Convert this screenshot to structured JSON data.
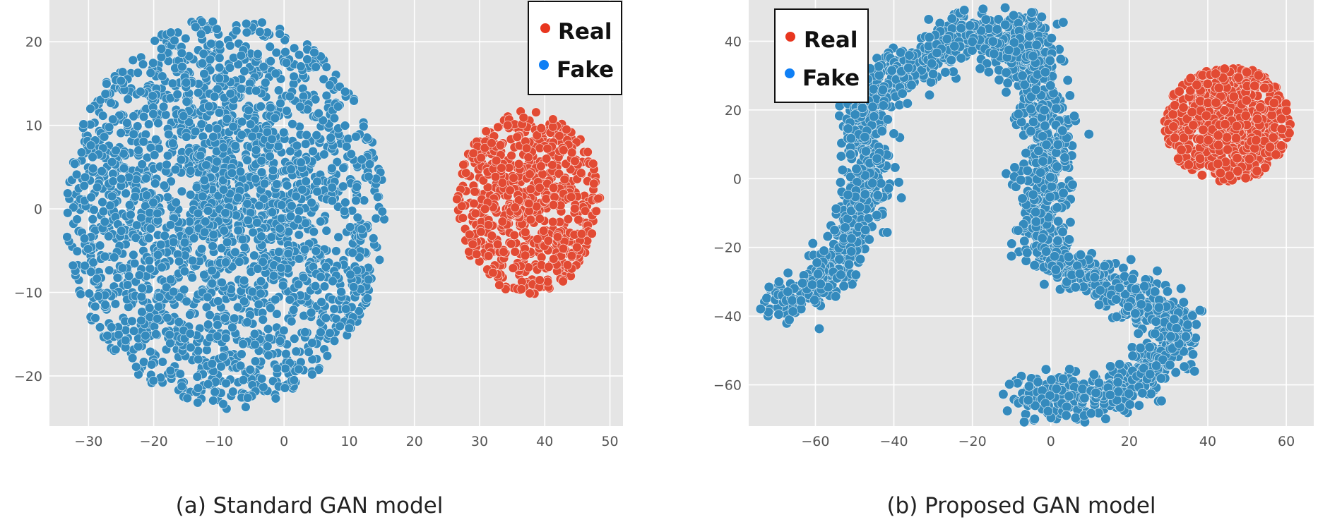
{
  "colors": {
    "panel_bg": "#e5e5e5",
    "grid": "#ffffff",
    "real": "#e24a33",
    "fake": "#348abd",
    "legend_real_marker": "#e8361f",
    "legend_fake_marker": "#0f7ff5",
    "tick_text": "#555555"
  },
  "chart_data": [
    {
      "type": "scatter",
      "title": "",
      "caption": "(a) Standard GAN model",
      "xlim": [
        -36,
        52
      ],
      "ylim": [
        -26,
        25
      ],
      "xticks": [
        -30,
        -20,
        -10,
        0,
        10,
        20,
        30,
        40,
        50
      ],
      "yticks": [
        -20,
        -10,
        0,
        10,
        20
      ],
      "xtick_labels": [
        "−30",
        "−20",
        "−10",
        "0",
        "10",
        "20",
        "30",
        "40",
        "50"
      ],
      "ytick_labels": [
        "−20",
        "−10",
        "0",
        "10",
        "20"
      ],
      "grid": true,
      "legend": {
        "position": "top-right",
        "entries": [
          "Real",
          "Fake"
        ]
      },
      "series": [
        {
          "name": "Fake",
          "color": "#348abd",
          "n_points": 2300,
          "shape": "ellipse",
          "center": [
            -9,
            -0.5
          ],
          "radii": [
            24.5,
            23.5
          ]
        },
        {
          "name": "Real",
          "color": "#e24a33",
          "n_points": 650,
          "shape": "ellipse",
          "center": [
            37.5,
            0.8
          ],
          "radii": [
            11,
            11
          ]
        }
      ]
    },
    {
      "type": "scatter",
      "title": "",
      "caption": "(b) Proposed GAN model",
      "xlim": [
        -77,
        67
      ],
      "ylim": [
        -72,
        52
      ],
      "xticks": [
        -60,
        -40,
        -20,
        0,
        20,
        40,
        60
      ],
      "yticks": [
        -60,
        -40,
        -20,
        0,
        20,
        40
      ],
      "xtick_labels": [
        "−60",
        "−40",
        "−20",
        "0",
        "20",
        "40",
        "60"
      ],
      "ytick_labels": [
        "−60",
        "−40",
        "−20",
        "0",
        "20",
        "40"
      ],
      "grid": true,
      "legend": {
        "position": "top-left",
        "entries": [
          "Real",
          "Fake"
        ]
      },
      "series": [
        {
          "name": "Fake",
          "color": "#348abd",
          "n_points": 2400,
          "shape": "path",
          "path": [
            [
              -70,
              -36
            ],
            [
              -62,
              -32
            ],
            [
              -55,
              -25
            ],
            [
              -50,
              -15
            ],
            [
              -47,
              -5
            ],
            [
              -46,
              5
            ],
            [
              -48,
              15
            ],
            [
              -45,
              25
            ],
            [
              -40,
              30
            ],
            [
              -33,
              33
            ],
            [
              -25,
              40
            ],
            [
              -20,
              45
            ],
            [
              -15,
              38
            ],
            [
              -10,
              36
            ],
            [
              -6,
              44
            ],
            [
              -4,
              30
            ],
            [
              -2,
              20
            ],
            [
              0,
              10
            ],
            [
              -2,
              -2
            ],
            [
              -4,
              -12
            ],
            [
              -1,
              -22
            ],
            [
              6,
              -26
            ],
            [
              14,
              -30
            ],
            [
              22,
              -36
            ],
            [
              30,
              -40
            ],
            [
              33,
              -45
            ],
            [
              30,
              -50
            ],
            [
              24,
              -55
            ],
            [
              20,
              -62
            ],
            [
              10,
              -63
            ],
            [
              0,
              -63
            ],
            [
              -8,
              -64
            ]
          ],
          "path_width": 4.2
        },
        {
          "name": "Real",
          "color": "#e24a33",
          "n_points": 700,
          "shape": "ellipse",
          "center": [
            45,
            16
          ],
          "radii": [
            16,
            17
          ]
        }
      ]
    }
  ]
}
